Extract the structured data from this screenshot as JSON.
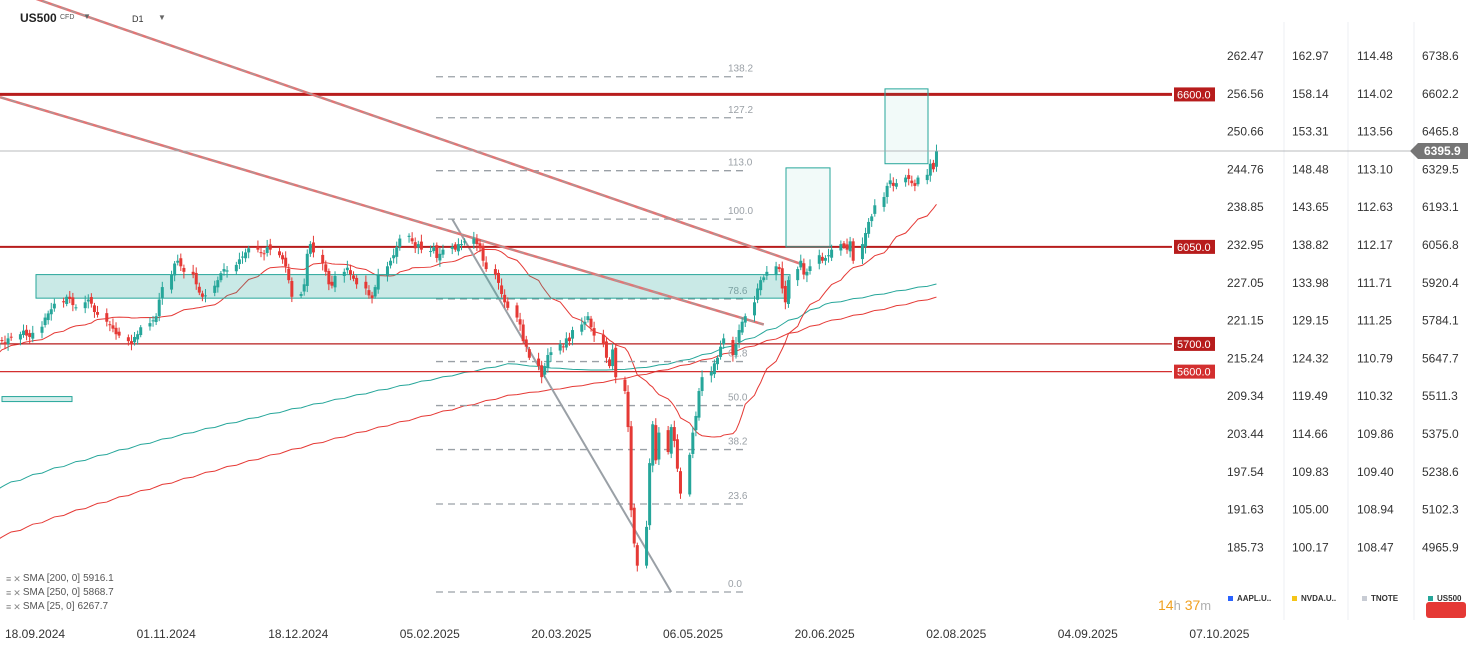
{
  "header": {
    "symbol": "US500",
    "symbol_type": "CFD",
    "timeframe": "D1"
  },
  "chart_data": {
    "type": "candlestick",
    "price_axis": {
      "tick_labels": [
        "262.47",
        "256.56",
        "250.66",
        "244.76",
        "238.85",
        "232.95",
        "227.05",
        "221.15",
        "215.24",
        "209.34",
        "203.44",
        "197.54",
        "191.63",
        "185.73"
      ]
    },
    "comparison_axes": [
      {
        "name": "NVDA.U..",
        "tick_labels": [
          "162.97",
          "158.14",
          "153.31",
          "148.48",
          "143.65",
          "138.82",
          "133.98",
          "129.15",
          "124.32",
          "119.49",
          "114.66",
          "109.83",
          "105.00",
          "100.17"
        ]
      },
      {
        "name": "TNOTE",
        "tick_labels": [
          "114.48",
          "114.02",
          "113.56",
          "113.10",
          "112.63",
          "112.17",
          "111.71",
          "111.25",
          "110.79",
          "110.32",
          "109.86",
          "109.40",
          "108.94",
          "108.47"
        ]
      },
      {
        "name": "US500",
        "tick_labels": [
          "6738.6",
          "6602.2",
          "6465.8",
          "6329.5",
          "6193.1",
          "6056.8",
          "5920.4",
          "5784.1",
          "5647.7",
          "5511.3",
          "5375.0",
          "5238.6",
          "5102.3",
          "4965.9"
        ]
      }
    ],
    "legend": [
      {
        "name": "AAPL.U..",
        "color": "#2962ff"
      },
      {
        "name": "NVDA.U..",
        "color": "#f5c518"
      },
      {
        "name": "TNOTE",
        "color": "#c8ccd4"
      },
      {
        "name": "US500",
        "color": "#26a69a"
      }
    ],
    "x_tick_labels": [
      "18.09.2024",
      "01.11.2024",
      "18.12.2024",
      "05.02.2025",
      "20.03.2025",
      "06.05.2025",
      "20.06.2025",
      "02.08.2025",
      "04.09.2025",
      "07.10.2025"
    ],
    "current_price": 6395.9,
    "current_price_label": "6395.9",
    "horizontal_levels": [
      {
        "value": 6600.0,
        "label": "6600.0",
        "color": "#b71c1c"
      },
      {
        "value": 6050.0,
        "label": "6050.0",
        "color": "#b71c1c"
      },
      {
        "value": 5700.0,
        "label": "5700.0",
        "color": "#b71c1c"
      },
      {
        "value": 5600.0,
        "label": "5600.0",
        "color": "#d32f2f"
      }
    ],
    "fibonacci": {
      "low": 4805,
      "high": 6150,
      "levels": [
        {
          "ratio": 0.0,
          "label": "0.0"
        },
        {
          "ratio": 0.236,
          "label": "23.6"
        },
        {
          "ratio": 0.382,
          "label": "38.2"
        },
        {
          "ratio": 0.5,
          "label": "50.0"
        },
        {
          "ratio": 0.618,
          "label": "61.8"
        },
        {
          "ratio": 0.786,
          "label": "78.6"
        },
        {
          "ratio": 1.0,
          "label": "100.0"
        },
        {
          "ratio": 1.13,
          "label": "113.0"
        },
        {
          "ratio": 1.272,
          "label": "127.2"
        },
        {
          "ratio": 1.382,
          "label": "138.2"
        }
      ]
    },
    "indicators": [
      {
        "name": "SMA [200, 0]",
        "value": "5916.1",
        "color": "#26a69a"
      },
      {
        "name": "SMA [250, 0]",
        "value": "5868.7",
        "color": "#e53935"
      },
      {
        "name": "SMA [25, 0]",
        "value": "6267.7",
        "color": "#e53935"
      }
    ],
    "candles_close": [
      5618,
      5680,
      5705,
      5712,
      5700,
      5720,
      5725,
      5735,
      5748,
      5730,
      5725,
      5740,
      5762,
      5795,
      5810,
      5825,
      5845,
      5850,
      5870,
      5862,
      5840,
      5832,
      5850,
      5860,
      5845,
      5815,
      5805,
      5780,
      5770,
      5755,
      5735,
      5730,
      5710,
      5700,
      5725,
      5735,
      5760,
      5775,
      5785,
      5800,
      5860,
      5905,
      5950,
      5990,
      6000,
      5980,
      5960,
      5950,
      5915,
      5885,
      5870,
      5875,
      5910,
      5930,
      5955,
      5970,
      5965,
      5985,
      6005,
      6015,
      6030,
      6045,
      6040,
      6030,
      6025,
      6050,
      6040,
      6020,
      6005,
      5980,
      5930,
      5870,
      5880,
      5915,
      6025,
      6060,
      6030,
      5990,
      5960,
      5915,
      5910,
      5945,
      5960,
      5975,
      5950,
      5935,
      5915,
      5900,
      5875,
      5865,
      5905,
      5950,
      5980,
      6000,
      6020,
      6050,
      6080,
      6090,
      6070,
      6045,
      6060,
      6040,
      6035,
      6050,
      6010,
      6025,
      6040,
      6050,
      6040,
      6060,
      6060,
      6070,
      6080,
      6060,
      6045,
      6000,
      5970,
      5950,
      5920,
      5880,
      5850,
      5830,
      5795,
      5770,
      5710,
      5690,
      5650,
      5620,
      5580,
      5620,
      5660,
      5670,
      5700,
      5690,
      5720,
      5710,
      5750,
      5770,
      5780,
      5800,
      5760,
      5730,
      5700,
      5650,
      5620,
      5680,
      5580,
      5530,
      5400,
      5100,
      4980,
      4900,
      5040,
      5270,
      5410,
      5280,
      5380,
      5310,
      5400,
      5350,
      5250,
      5160,
      5300,
      5380,
      5440,
      5530,
      5580,
      5600,
      5630,
      5650,
      5690,
      5720,
      5660,
      5700,
      5750,
      5780,
      5800,
      5850,
      5900,
      5930,
      5940,
      5960,
      5980,
      5970,
      5900,
      5850,
      5930,
      5970,
      6000,
      5950,
      5960,
      5980,
      6020,
      6000,
      6010,
      6020,
      6040,
      6060,
      6050,
      6040,
      6070,
      6000,
      6060,
      6100,
      6140,
      6160,
      6200,
      6230,
      6270,
      6290,
      6270,
      6280,
      6300,
      6295,
      6280,
      6270,
      6300,
      6310,
      6350,
      6330,
      6395
    ]
  }
}
